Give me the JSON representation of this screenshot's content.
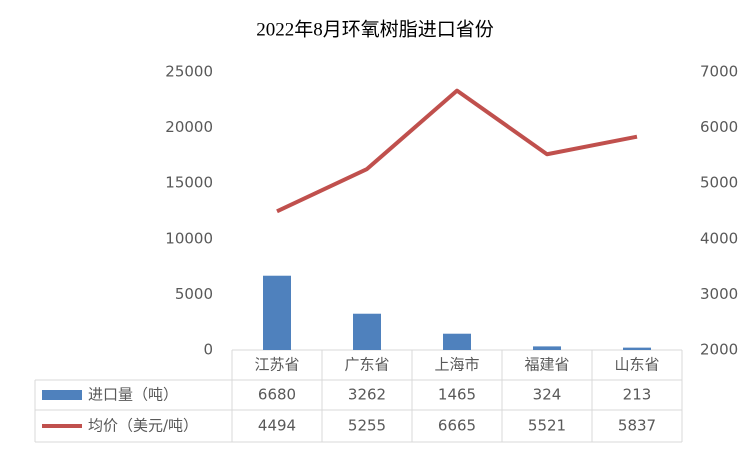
{
  "chart_data": {
    "type": "combo",
    "title": "2022年8月环氧树脂进口省份",
    "categories": [
      "江苏省",
      "广东省",
      "上海市",
      "福建省",
      "山东省"
    ],
    "series": [
      {
        "name": "进口量（吨）",
        "type": "bar",
        "color": "#4f81bd",
        "values": [
          6680,
          3262,
          1465,
          324,
          213
        ]
      },
      {
        "name": "均价（美元/吨）",
        "type": "line",
        "axis": "y2",
        "color": "#c0504d",
        "values": [
          4494,
          5255,
          6665,
          5521,
          5837
        ]
      }
    ],
    "ylim": [
      0,
      25000
    ],
    "yticks": [
      0,
      5000,
      10000,
      15000,
      20000,
      25000
    ],
    "y2lim": [
      2000,
      7000
    ],
    "y2ticks": [
      2000,
      3000,
      4000,
      5000,
      6000,
      7000
    ],
    "grid": false,
    "data_table": true
  }
}
